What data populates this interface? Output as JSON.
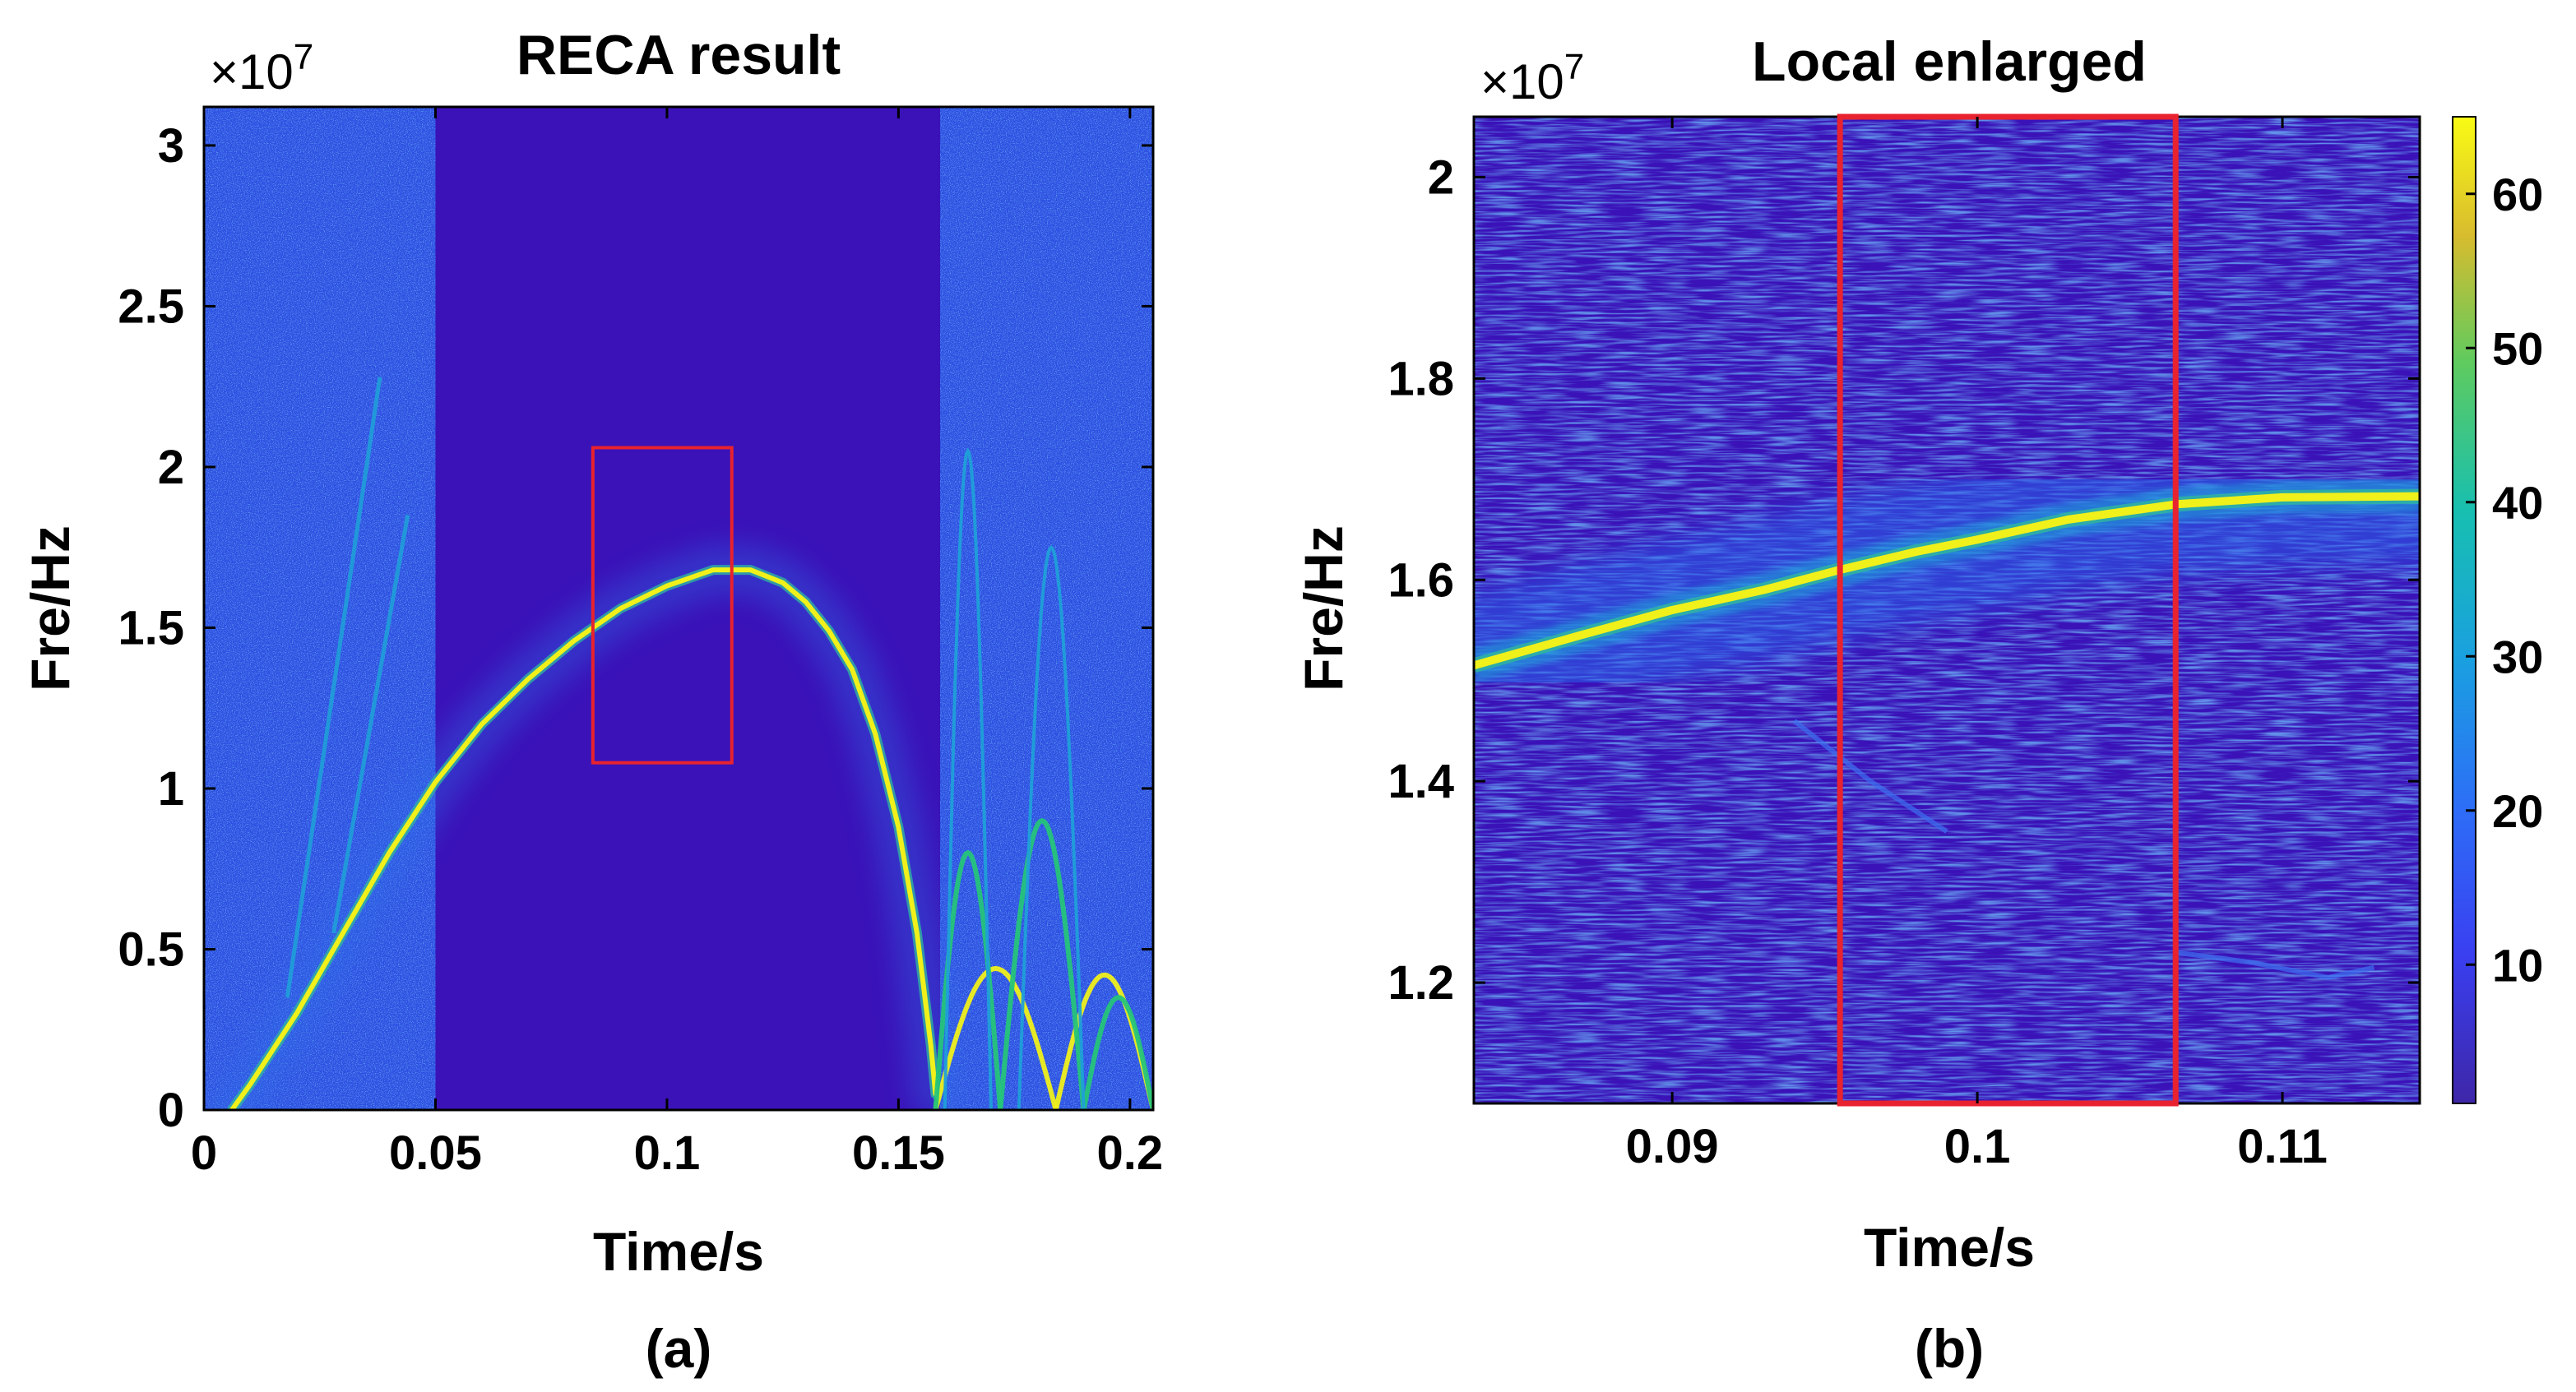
{
  "colors": {
    "background": "#3a12b8",
    "noise": "#2c55e6",
    "ridge_edge": "#2fb4a0",
    "ridge": "#f0f01a",
    "harmonic": "#1f9fd8",
    "harmonic_green": "#25c47a",
    "zoom_box": "#e8222e",
    "axis": "#000000"
  },
  "chart_data": [
    {
      "panel": "a",
      "type": "heatmap",
      "title": "RECA result",
      "xlabel": "Time/s",
      "ylabel": "Fre/Hz",
      "y_exponent": "×10",
      "y_exponent_power": "7",
      "xlim": [
        0,
        0.205
      ],
      "ylim": [
        0,
        3.12
      ],
      "x_ticks": [
        {
          "value": 0,
          "label": "0"
        },
        {
          "value": 0.05,
          "label": "0.05"
        },
        {
          "value": 0.1,
          "label": "0.1"
        },
        {
          "value": 0.15,
          "label": "0.15"
        },
        {
          "value": 0.2,
          "label": "0.2"
        }
      ],
      "y_ticks": [
        {
          "value": 0,
          "label": "0"
        },
        {
          "value": 0.5,
          "label": "0.5"
        },
        {
          "value": 1,
          "label": "1"
        },
        {
          "value": 1.5,
          "label": "1.5"
        },
        {
          "value": 2,
          "label": "2"
        },
        {
          "value": 2.5,
          "label": "2.5"
        },
        {
          "value": 3,
          "label": "3"
        }
      ],
      "noise_regions_x": [
        [
          0,
          0.05
        ],
        [
          0.159,
          0.205
        ]
      ],
      "main_ridge": [
        [
          0.006,
          0.0
        ],
        [
          0.01,
          0.08
        ],
        [
          0.02,
          0.3
        ],
        [
          0.03,
          0.55
        ],
        [
          0.04,
          0.8
        ],
        [
          0.05,
          1.02
        ],
        [
          0.06,
          1.2
        ],
        [
          0.07,
          1.34
        ],
        [
          0.08,
          1.46
        ],
        [
          0.09,
          1.56
        ],
        [
          0.1,
          1.63
        ],
        [
          0.11,
          1.68
        ],
        [
          0.118,
          1.68
        ],
        [
          0.125,
          1.64
        ],
        [
          0.13,
          1.58
        ],
        [
          0.135,
          1.49
        ],
        [
          0.14,
          1.37
        ],
        [
          0.145,
          1.17
        ],
        [
          0.15,
          0.88
        ],
        [
          0.154,
          0.55
        ],
        [
          0.157,
          0.2
        ],
        [
          0.158,
          0.05
        ]
      ],
      "harmonic_lines": [
        [
          [
            0.018,
            0.35
          ],
          [
            0.038,
            2.28
          ]
        ],
        [
          [
            0.028,
            0.55
          ],
          [
            0.044,
            1.85
          ]
        ]
      ],
      "tail_arches": [
        {
          "x0": 0.158,
          "x1": 0.184,
          "peak": 0.44,
          "tone": "ridge"
        },
        {
          "x0": 0.184,
          "x1": 0.205,
          "peak": 0.42,
          "tone": "ridge"
        },
        {
          "x0": 0.158,
          "x1": 0.172,
          "peak": 0.8,
          "tone": "harmonic_green"
        },
        {
          "x0": 0.172,
          "x1": 0.19,
          "peak": 0.9,
          "tone": "harmonic_green"
        },
        {
          "x0": 0.19,
          "x1": 0.205,
          "peak": 0.35,
          "tone": "harmonic_green"
        },
        {
          "x0": 0.16,
          "x1": 0.17,
          "peak": 2.05,
          "tone": "harmonic"
        },
        {
          "x0": 0.176,
          "x1": 0.19,
          "peak": 1.75,
          "tone": "harmonic"
        }
      ],
      "zoom_box": {
        "x": [
          0.084,
          0.114
        ],
        "y": [
          1.08,
          2.06
        ]
      },
      "caption": "(a)"
    },
    {
      "panel": "b",
      "type": "heatmap",
      "title": "Local enlarged",
      "xlabel": "Time/s",
      "ylabel": "Fre/Hz",
      "y_exponent": "×10",
      "y_exponent_power": "7",
      "xlim": [
        0.0835,
        0.1145
      ],
      "ylim": [
        1.08,
        2.06
      ],
      "x_ticks": [
        {
          "value": 0.09,
          "label": "0.09"
        },
        {
          "value": 0.1,
          "label": "0.1"
        },
        {
          "value": 0.11,
          "label": "0.11"
        }
      ],
      "y_ticks": [
        {
          "value": 1.2,
          "label": "1.2"
        },
        {
          "value": 1.4,
          "label": "1.4"
        },
        {
          "value": 1.6,
          "label": "1.6"
        },
        {
          "value": 1.8,
          "label": "1.8"
        },
        {
          "value": 2,
          "label": "2"
        }
      ],
      "ridge": [
        [
          0.0835,
          1.515
        ],
        [
          0.087,
          1.545
        ],
        [
          0.09,
          1.57
        ],
        [
          0.093,
          1.59
        ],
        [
          0.0955,
          1.61
        ],
        [
          0.098,
          1.628
        ],
        [
          0.1,
          1.64
        ],
        [
          0.103,
          1.66
        ],
        [
          0.1065,
          1.675
        ],
        [
          0.11,
          1.682
        ],
        [
          0.1145,
          1.683
        ]
      ],
      "faint_traces": [
        [
          [
            0.094,
            1.46
          ],
          [
            0.0965,
            1.4
          ],
          [
            0.099,
            1.35
          ]
        ],
        [
          [
            0.1065,
            1.23
          ],
          [
            0.109,
            1.22
          ],
          [
            0.1115,
            1.205
          ],
          [
            0.113,
            1.215
          ]
        ]
      ],
      "highlight_box": {
        "x": [
          0.0955,
          0.1065
        ],
        "y": [
          1.08,
          2.06
        ]
      },
      "colorbar": {
        "range": [
          1,
          65
        ],
        "ticks": [
          {
            "value": 10,
            "label": "10"
          },
          {
            "value": 20,
            "label": "20"
          },
          {
            "value": 30,
            "label": "30"
          },
          {
            "value": 40,
            "label": "40"
          },
          {
            "value": 50,
            "label": "50"
          },
          {
            "value": 60,
            "label": "60"
          }
        ]
      },
      "caption": "(b)"
    }
  ]
}
